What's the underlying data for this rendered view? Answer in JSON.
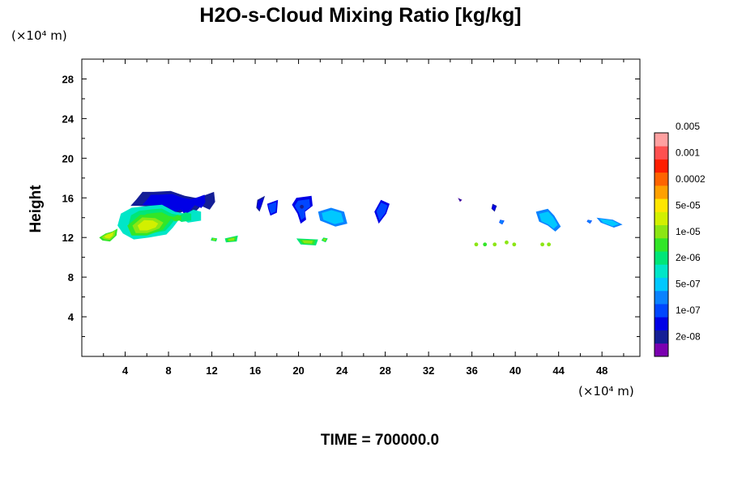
{
  "chart_data": {
    "type": "heatmap",
    "title": "H2O-s-Cloud Mixing Ratio [kg/kg]",
    "ylabel": "Height",
    "x_unit": "(×10⁴ m)",
    "y_unit": "(×10⁴ m)",
    "xlim": [
      0,
      51.5
    ],
    "ylim": [
      0,
      30
    ],
    "x_ticks": [
      "4",
      "8",
      "12",
      "16",
      "20",
      "24",
      "28",
      "32",
      "36",
      "40",
      "44",
      "48"
    ],
    "y_ticks": [
      "4",
      "8",
      "12",
      "16",
      "20",
      "24",
      "28"
    ],
    "footer": "TIME = 700000.0",
    "colorbar": {
      "colors": [
        "#7b00b0",
        "#141e96",
        "#0000e6",
        "#0046ff",
        "#0a82ff",
        "#00c8ff",
        "#00e6c8",
        "#00e678",
        "#32e628",
        "#8ce614",
        "#d2f000",
        "#ffe600",
        "#ffa000",
        "#ff6400",
        "#ff1e00",
        "#ff5050",
        "#ffa0a0"
      ],
      "labels": [
        "2e-08",
        "1e-07",
        "5e-07",
        "2e-06",
        "1e-05",
        "5e-05",
        "0.0002",
        "0.001",
        "0.005"
      ]
    },
    "regions": [
      {
        "x": [
          5.0,
          15.8,
          5.6,
          16.6,
          6.6,
          16.6,
          8.2,
          16.7,
          9.5,
          16.2,
          10.5,
          16.0,
          11.2,
          16.2,
          12.2,
          16.6,
          12.3,
          15.6,
          11.8,
          14.8,
          11.0,
          15.2,
          10.5,
          14.6,
          10.0,
          13.6,
          9.3,
          14.6,
          8.5,
          14.2,
          7.6,
          15.0,
          6.5,
          15.1,
          5.2,
          15.2,
          4.5,
          15.2
        ],
        "level": 2
      },
      {
        "x": [
          3.6,
          14.4,
          4.6,
          15.0,
          6.2,
          15.2,
          7.4,
          15.3,
          8.6,
          14.6,
          9.6,
          14.4,
          10.3,
          14.8,
          11.0,
          14.6,
          11.0,
          13.7,
          9.8,
          13.5,
          9.1,
          14.0,
          8.4,
          13.0,
          7.8,
          12.3,
          6.2,
          12.0,
          4.8,
          11.8,
          3.8,
          12.4,
          3.3,
          13.2
        ],
        "level": 8
      },
      {
        "x": [
          4.2,
          13.2,
          5.4,
          14.3,
          7.0,
          14.2,
          8.0,
          13.6,
          7.5,
          12.8,
          6.0,
          12.2,
          4.6,
          12.2
        ],
        "level": 10
      },
      {
        "x": [
          1.6,
          12.0,
          2.2,
          12.4,
          2.8,
          12.6,
          3.3,
          12.9,
          3.2,
          12.2,
          2.6,
          11.6,
          1.9,
          11.7
        ],
        "level": 10
      },
      {
        "x": [
          16.2,
          15.8,
          16.9,
          16.2,
          16.6,
          15.2,
          16.4,
          14.6,
          16.1,
          15.0
        ],
        "level": 2
      },
      {
        "x": [
          17.1,
          15.4,
          18.1,
          15.8,
          18.0,
          14.5,
          17.4,
          14.2,
          17.2,
          14.9
        ],
        "level": 3
      },
      {
        "x": [
          19.8,
          16.0,
          21.2,
          16.2,
          21.3,
          15.2,
          20.6,
          14.6,
          20.7,
          13.8,
          20.2,
          13.4,
          19.9,
          14.4,
          19.4,
          15.3
        ],
        "level": 3
      },
      {
        "x": [
          21.8,
          14.6,
          23.0,
          15.0,
          24.2,
          14.6,
          24.5,
          13.4,
          23.4,
          13.1,
          22.0,
          13.7
        ],
        "level": 5
      },
      {
        "x": [
          27.6,
          15.8,
          28.4,
          15.4,
          28.1,
          14.4,
          27.4,
          13.4,
          27.0,
          14.6
        ],
        "level": 3
      },
      {
        "x": [
          41.9,
          14.6,
          43.0,
          14.9,
          43.6,
          14.2,
          44.2,
          13.1,
          43.7,
          12.6,
          43.0,
          13.2,
          42.2,
          13.6
        ],
        "level": 5
      },
      {
        "x": [
          47.5,
          14.0,
          49.0,
          13.8,
          49.9,
          13.3,
          49.1,
          13.0,
          47.9,
          13.5
        ],
        "level": 5
      },
      {
        "x": [
          12.0,
          12.0,
          12.5,
          11.9,
          12.4,
          11.6,
          11.9,
          11.7
        ],
        "level": 9
      },
      {
        "x": [
          13.2,
          11.9,
          14.4,
          12.2,
          14.3,
          11.6,
          13.3,
          11.5
        ],
        "level": 9
      },
      {
        "x": [
          19.8,
          11.9,
          21.8,
          11.8,
          21.6,
          11.2,
          20.2,
          11.3
        ],
        "level": 9
      },
      {
        "x": [
          22.3,
          12.0,
          22.7,
          11.9,
          22.5,
          11.5,
          22.1,
          11.7
        ],
        "level": 9
      },
      {
        "x": [
          37.9,
          15.4,
          38.3,
          15.2,
          38.1,
          14.6,
          37.8,
          14.9
        ],
        "level": 2
      },
      {
        "x": [
          38.6,
          13.8,
          39.0,
          13.7,
          38.8,
          13.3,
          38.5,
          13.5
        ],
        "level": 4
      },
      {
        "x": [
          46.7,
          13.8,
          47.1,
          13.7,
          46.9,
          13.4,
          46.6,
          13.6
        ],
        "level": 4
      },
      {
        "x": [
          34.7,
          16.0,
          35.1,
          15.8,
          34.9,
          15.6
        ],
        "level": 1
      }
    ],
    "dots": [
      {
        "x": 36.4,
        "y": 11.3,
        "level": 9
      },
      {
        "x": 37.2,
        "y": 11.3,
        "level": 8
      },
      {
        "x": 38.1,
        "y": 11.3,
        "level": 9
      },
      {
        "x": 39.2,
        "y": 11.5,
        "level": 9
      },
      {
        "x": 39.9,
        "y": 11.3,
        "level": 9
      },
      {
        "x": 42.5,
        "y": 11.3,
        "level": 9
      },
      {
        "x": 43.1,
        "y": 11.3,
        "level": 9
      },
      {
        "x": 20.3,
        "y": 15.1,
        "level": 1
      }
    ]
  }
}
